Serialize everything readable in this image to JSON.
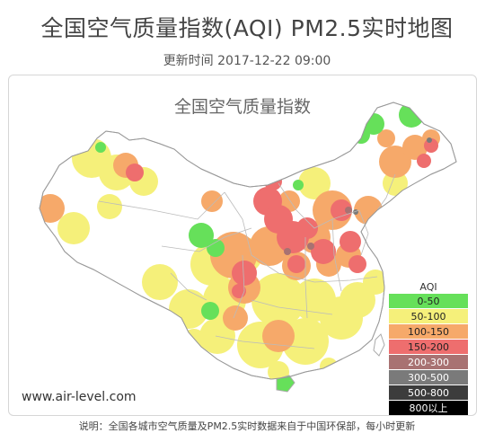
{
  "page": {
    "title": "全国空气质量指数(AQI) PM2.5实时地图",
    "update_time": "更新时间 2017-12-22 09:00",
    "footer_note": "说明：全国各城市空气质量及PM2.5实时数据来自于中国环保部，每小时更新"
  },
  "map": {
    "inner_title": "全国空气质量指数",
    "watermark": "www.air-level.com",
    "colors": {
      "good": "#66e05a",
      "moderate": "#f5f07a",
      "light": "#f6a96a",
      "moderate_pollution": "#ee6e6e",
      "heavy": "#a87272",
      "severe": "#7a7a7a",
      "hazardous": "#3c3c3c",
      "beyond": "#000000",
      "land": "#ffffff",
      "border": "#aaaaaa"
    }
  },
  "legend": {
    "title": "AQI",
    "items": [
      {
        "label": "0-50",
        "color": "#66e05a",
        "text_color": "#222222"
      },
      {
        "label": "50-100",
        "color": "#f5f07a",
        "text_color": "#222222"
      },
      {
        "label": "100-150",
        "color": "#f6a96a",
        "text_color": "#222222"
      },
      {
        "label": "150-200",
        "color": "#ee6e6e",
        "text_color": "#222222"
      },
      {
        "label": "200-300",
        "color": "#a87272",
        "text_color": "#ffffff"
      },
      {
        "label": "300-500",
        "color": "#7a7a7a",
        "text_color": "#ffffff"
      },
      {
        "label": "500-800",
        "color": "#3c3c3c",
        "text_color": "#ffffff"
      },
      {
        "label": "800以上",
        "color": "#000000",
        "text_color": "#ffffff"
      }
    ]
  }
}
